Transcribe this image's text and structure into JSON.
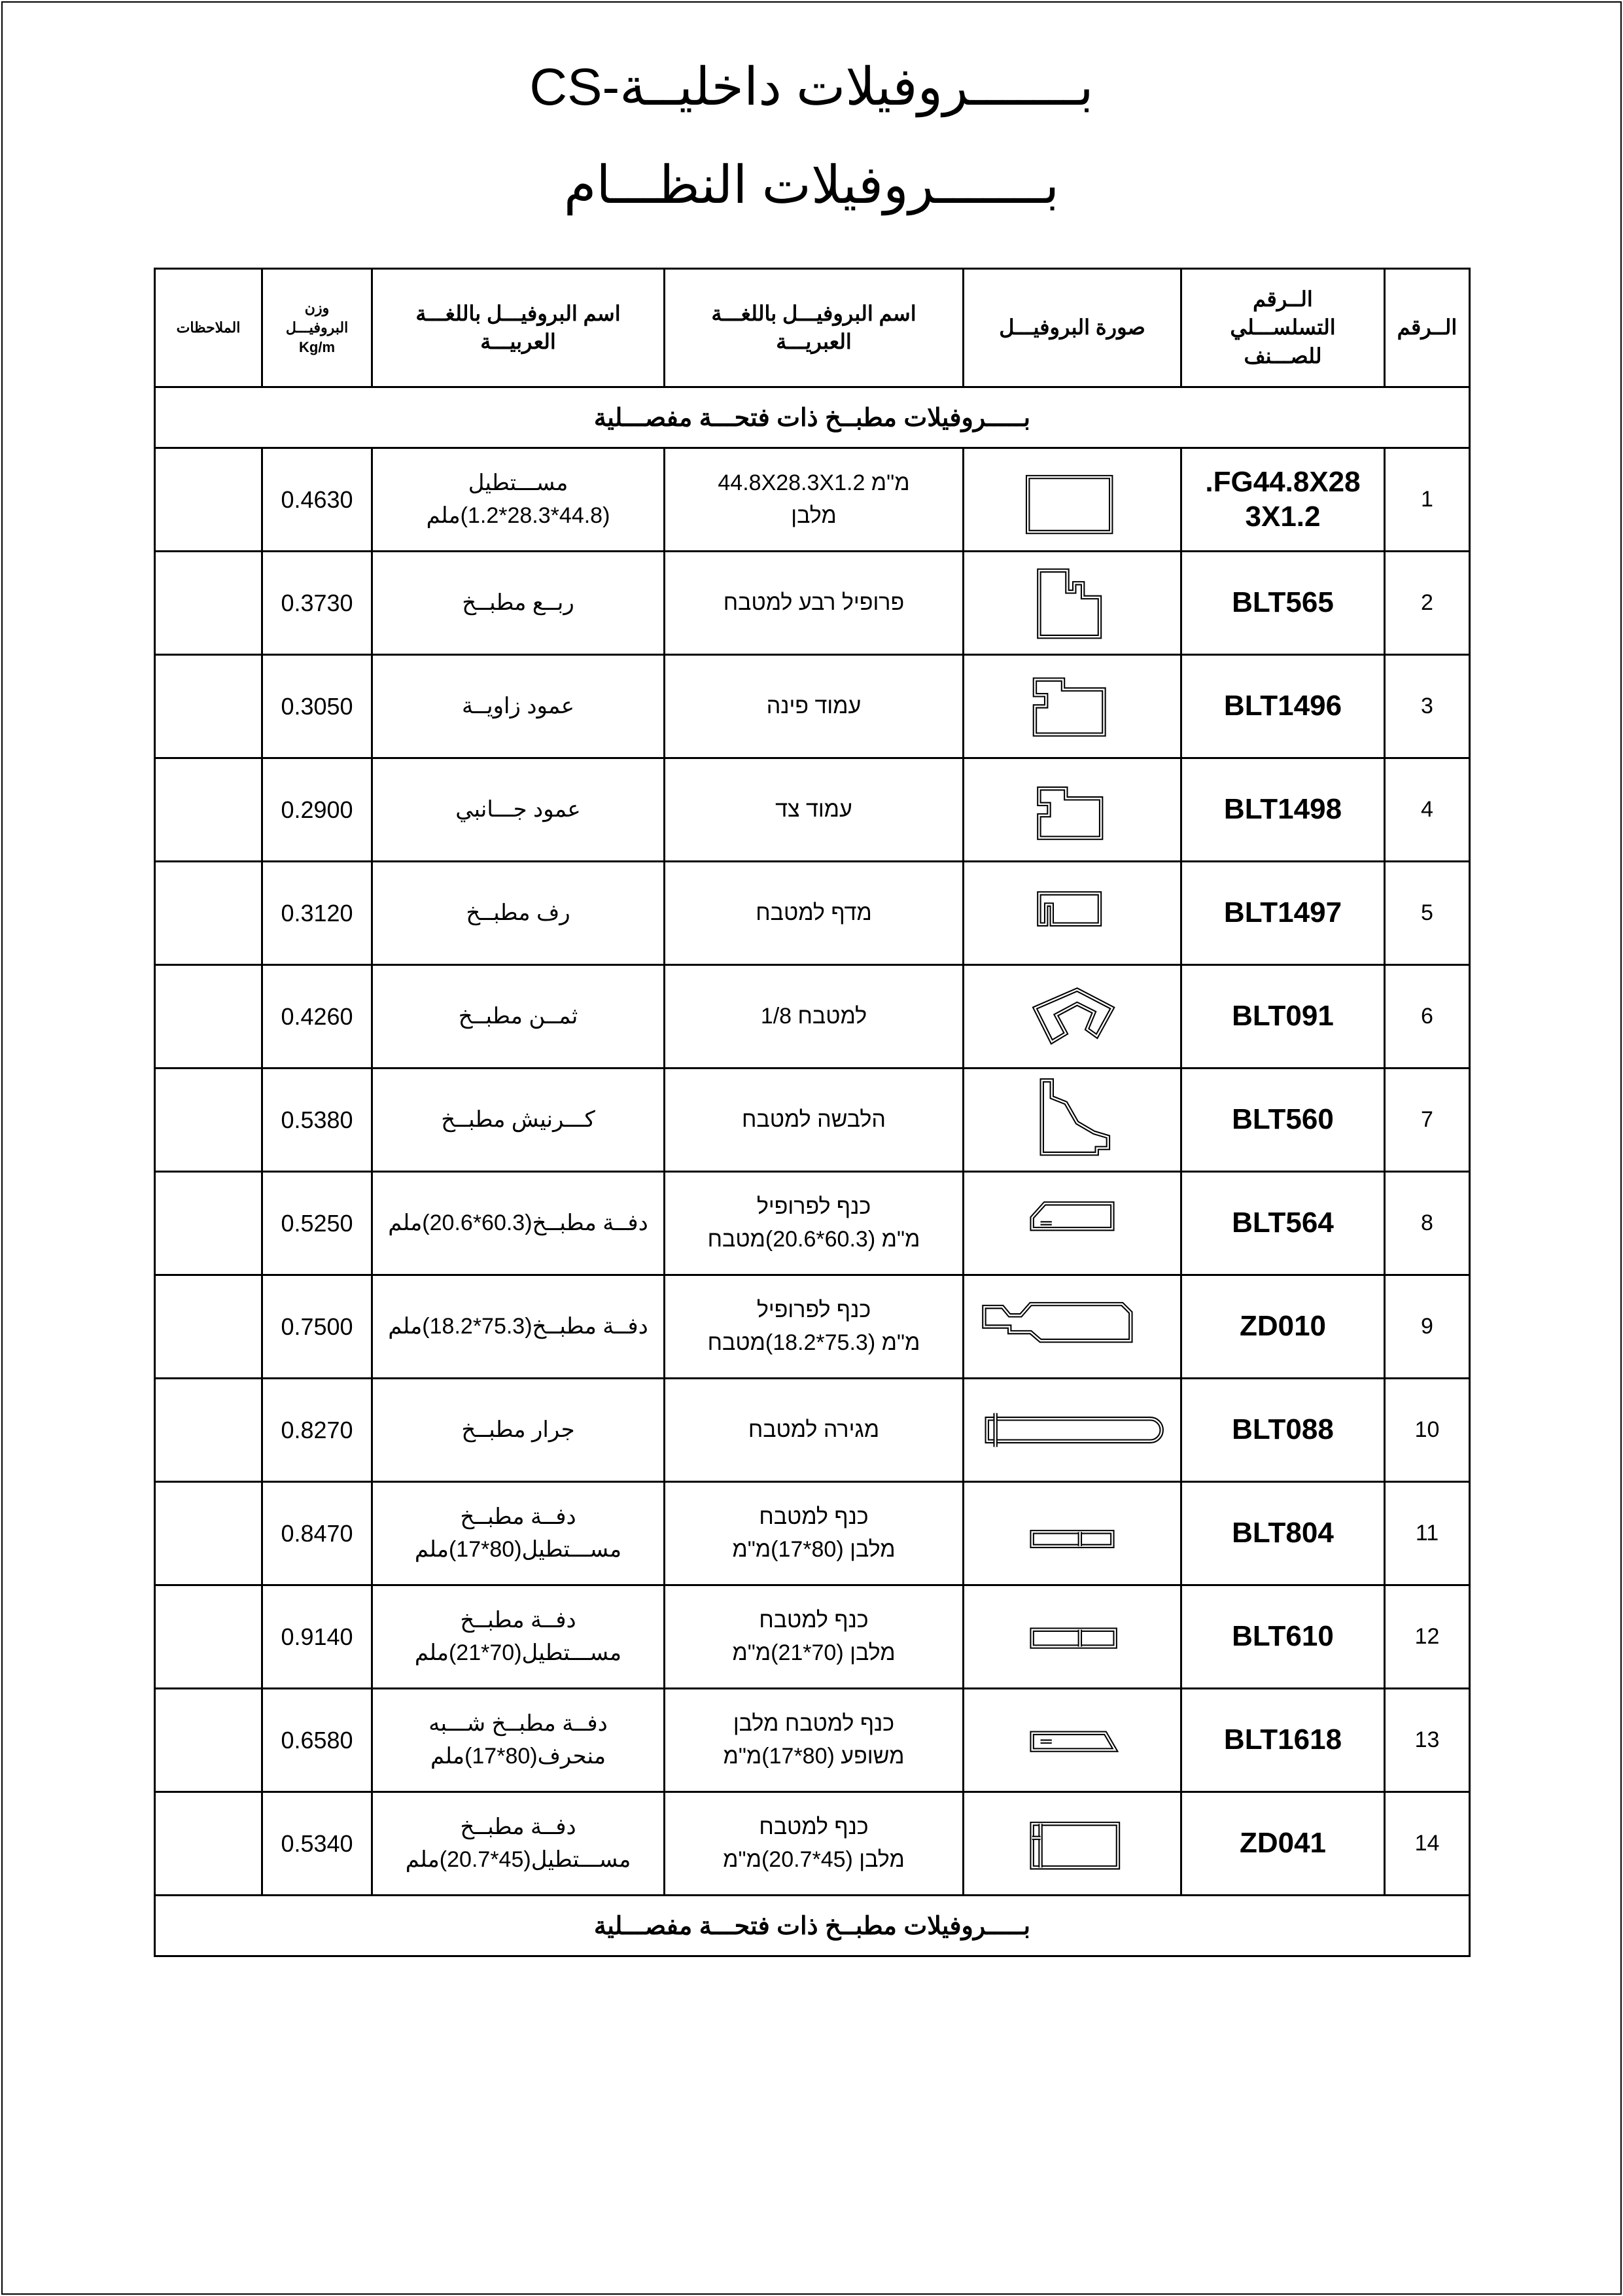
{
  "titles": {
    "main": "بـــــــروفيلات داخليــة-CS",
    "sub": "بـــــــروفيلات النظـــام"
  },
  "headers": {
    "index": "الــرقم",
    "serial": "الــرقم\nالتسلســـلي\nللصـــنف",
    "image": "صورة البروفيـــل",
    "hebrew": "اسم البروفيـــل باللغـــة\nالعبريـــة",
    "arabic": "اسم البروفيـــل باللغـــة\nالعربيـــة",
    "weight": "وزن\nالبروفيـــل\nKg/m",
    "notes": "الملاحظات"
  },
  "section_title": "بـــــروفيلات مطبــخ ذات فتحـــة مفصـــلية",
  "footer_title": "بـــــروفيلات مطبــخ ذات فتحـــة مفصـــلية",
  "rows": [
    {
      "n": "1",
      "code": "FG44.8X28.\n3X1.2",
      "icon": "rect-tube-profile",
      "he": "מ\"מ 44.8X28.3X1.2\nמלבן",
      "ar": "مســـتطيل\n(44.8*28.3*1.2)ملم",
      "w": "0.4630",
      "notes": ""
    },
    {
      "n": "2",
      "code": "BLT565",
      "icon": "quarter-profile",
      "he": "פרופיל רבע למטבח",
      "ar": "ربــع مطبــخ",
      "w": "0.3730",
      "notes": ""
    },
    {
      "n": "3",
      "code": "BLT1496",
      "icon": "corner-post-profile",
      "he": "עמוד פינה",
      "ar": "عمود زاويــة",
      "w": "0.3050",
      "notes": ""
    },
    {
      "n": "4",
      "code": "BLT1498",
      "icon": "side-post-profile",
      "he": "עמוד צד",
      "ar": "عمود جـــانبي",
      "w": "0.2900",
      "notes": ""
    },
    {
      "n": "5",
      "code": "BLT1497",
      "icon": "shelf-profile",
      "he": "מדף למטבח",
      "ar": "رف مطبــخ",
      "w": "0.3120",
      "notes": ""
    },
    {
      "n": "6",
      "code": "BLT091",
      "icon": "eighth-profile",
      "he": "למטבח 1/8",
      "ar": "ثمــن مطبــخ",
      "w": "0.4260",
      "notes": ""
    },
    {
      "n": "7",
      "code": "BLT560",
      "icon": "cornice-profile",
      "he": "הלבשה למטבח",
      "ar": "كـــرنيش مطبــخ",
      "w": "0.5380",
      "notes": ""
    },
    {
      "n": "8",
      "code": "BLT564",
      "icon": "door-profile-a",
      "he": "כנף לפרופיל\nמ\"מ (60.3*20.6)מטבח",
      "ar": "دفــة مطبــخ(60.3*20.6)ملم",
      "w": "0.5250",
      "notes": ""
    },
    {
      "n": "9",
      "code": "ZD010",
      "icon": "door-profile-b",
      "he": "כנף לפרופיל\nמ\"מ (75.3*18.2)מטבח",
      "ar": "دفــة مطبــخ(75.3*18.2)ملم",
      "w": "0.7500",
      "notes": ""
    },
    {
      "n": "10",
      "code": "BLT088",
      "icon": "drawer-profile",
      "he": "מגירה למטבח",
      "ar": "جرار مطبــخ",
      "w": "0.8270",
      "notes": ""
    },
    {
      "n": "11",
      "code": "BLT804",
      "icon": "flat-door-profile-a",
      "he": "כנף למטבח\nמלבן (80*17)מ\"מ",
      "ar": "دفــة مطبــخ\nمســـتطيل(80*17)ملم",
      "w": "0.8470",
      "notes": ""
    },
    {
      "n": "12",
      "code": "BLT610",
      "icon": "flat-door-profile-b",
      "he": "כנף למטבח\nמלבן (70*21)מ\"מ",
      "ar": "دفــة مطبــخ\nمســـتطيل(70*21)ملم",
      "w": "0.9140",
      "notes": ""
    },
    {
      "n": "13",
      "code": "BLT1618",
      "icon": "bevel-door-profile",
      "he": "כנף למטבח מלבן\nמשופע (80*17)מ\"מ",
      "ar": "دفــة مطبــخ شـــبه\nمنحرف(80*17)ملم",
      "w": "0.6580",
      "notes": ""
    },
    {
      "n": "14",
      "code": "ZD041",
      "icon": "frame-door-profile",
      "he": "כנף למטבח\nמלבן (45*20.7)מ\"מ",
      "ar": "دفــة مطبــخ\nمســـتطيل(45*20.7)ملم",
      "w": "0.5340",
      "notes": ""
    }
  ]
}
